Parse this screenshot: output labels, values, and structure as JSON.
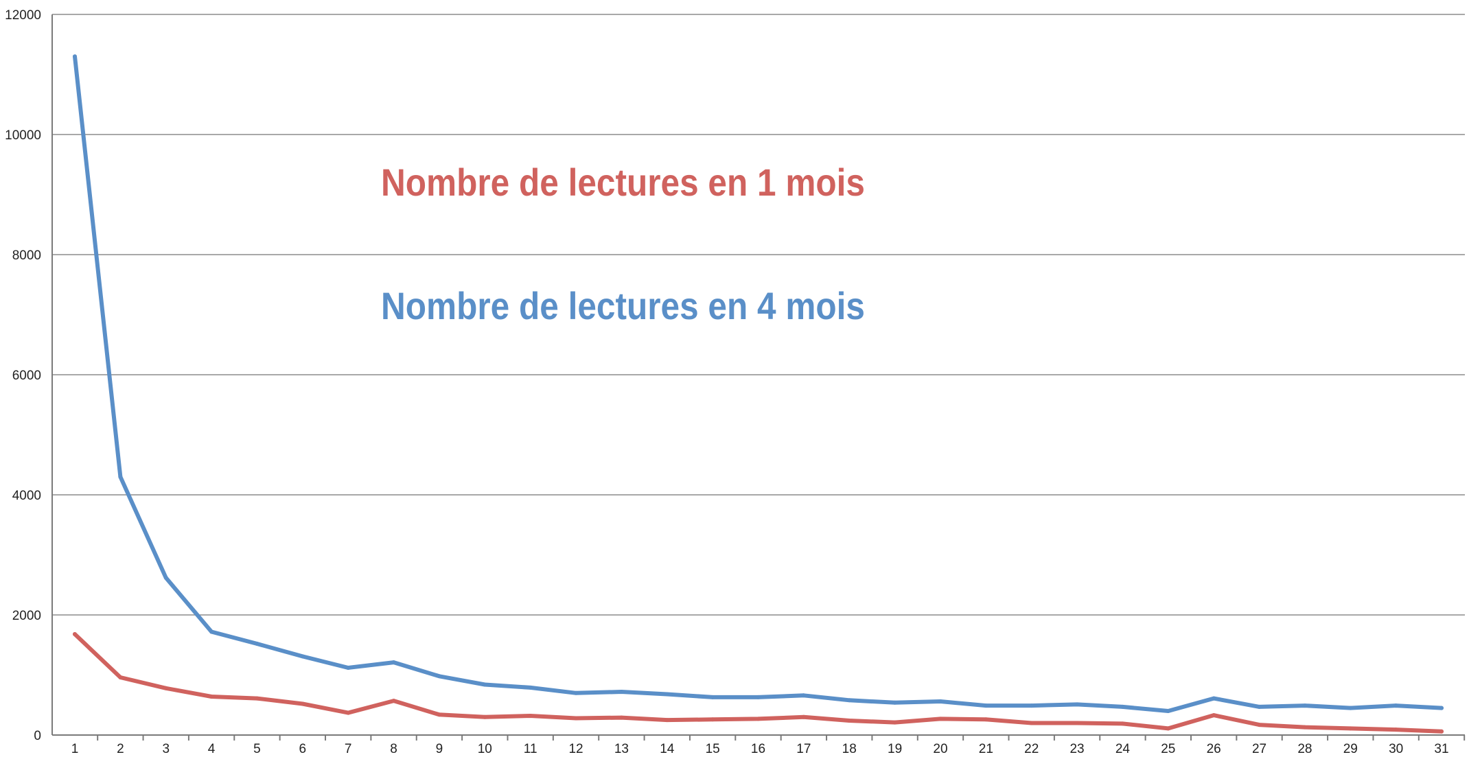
{
  "chart_data": {
    "type": "line",
    "title": "",
    "xlabel": "",
    "ylabel": "",
    "x": [
      1,
      2,
      3,
      4,
      5,
      6,
      7,
      8,
      9,
      10,
      11,
      12,
      13,
      14,
      15,
      16,
      17,
      18,
      19,
      20,
      21,
      22,
      23,
      24,
      25,
      26,
      27,
      28,
      29,
      30,
      31
    ],
    "ylim": [
      0,
      12000
    ],
    "yticks": [
      0,
      2000,
      4000,
      6000,
      8000,
      10000,
      12000
    ],
    "ytick_labels": [
      "0",
      "2000",
      "4000",
      "6000",
      "8000",
      "10000",
      "12000"
    ],
    "xtick_labels": [
      "1",
      "2",
      "3",
      "4",
      "5",
      "6",
      "7",
      "8",
      "9",
      "10",
      "11",
      "12",
      "13",
      "14",
      "15",
      "16",
      "17",
      "18",
      "19",
      "20",
      "21",
      "22",
      "23",
      "24",
      "25",
      "26",
      "27",
      "28",
      "29",
      "30",
      "31"
    ],
    "grid": true,
    "legend_placement": "inside-top-center",
    "series": [
      {
        "name": "Nombre de lectures en 4 mois",
        "color": "#5a8fc8",
        "values": [
          11300,
          4300,
          2620,
          1720,
          1520,
          1310,
          1120,
          1210,
          980,
          840,
          790,
          700,
          720,
          680,
          630,
          630,
          660,
          580,
          540,
          560,
          490,
          490,
          510,
          470,
          400,
          610,
          470,
          490,
          450,
          490,
          450
        ]
      },
      {
        "name": "Nombre de lectures en 1 mois",
        "color": "#d0625e",
        "values": [
          1680,
          960,
          780,
          640,
          610,
          520,
          370,
          570,
          340,
          300,
          320,
          280,
          290,
          250,
          260,
          270,
          300,
          240,
          210,
          270,
          260,
          200,
          200,
          190,
          110,
          330,
          170,
          130,
          110,
          90,
          60
        ]
      }
    ]
  }
}
